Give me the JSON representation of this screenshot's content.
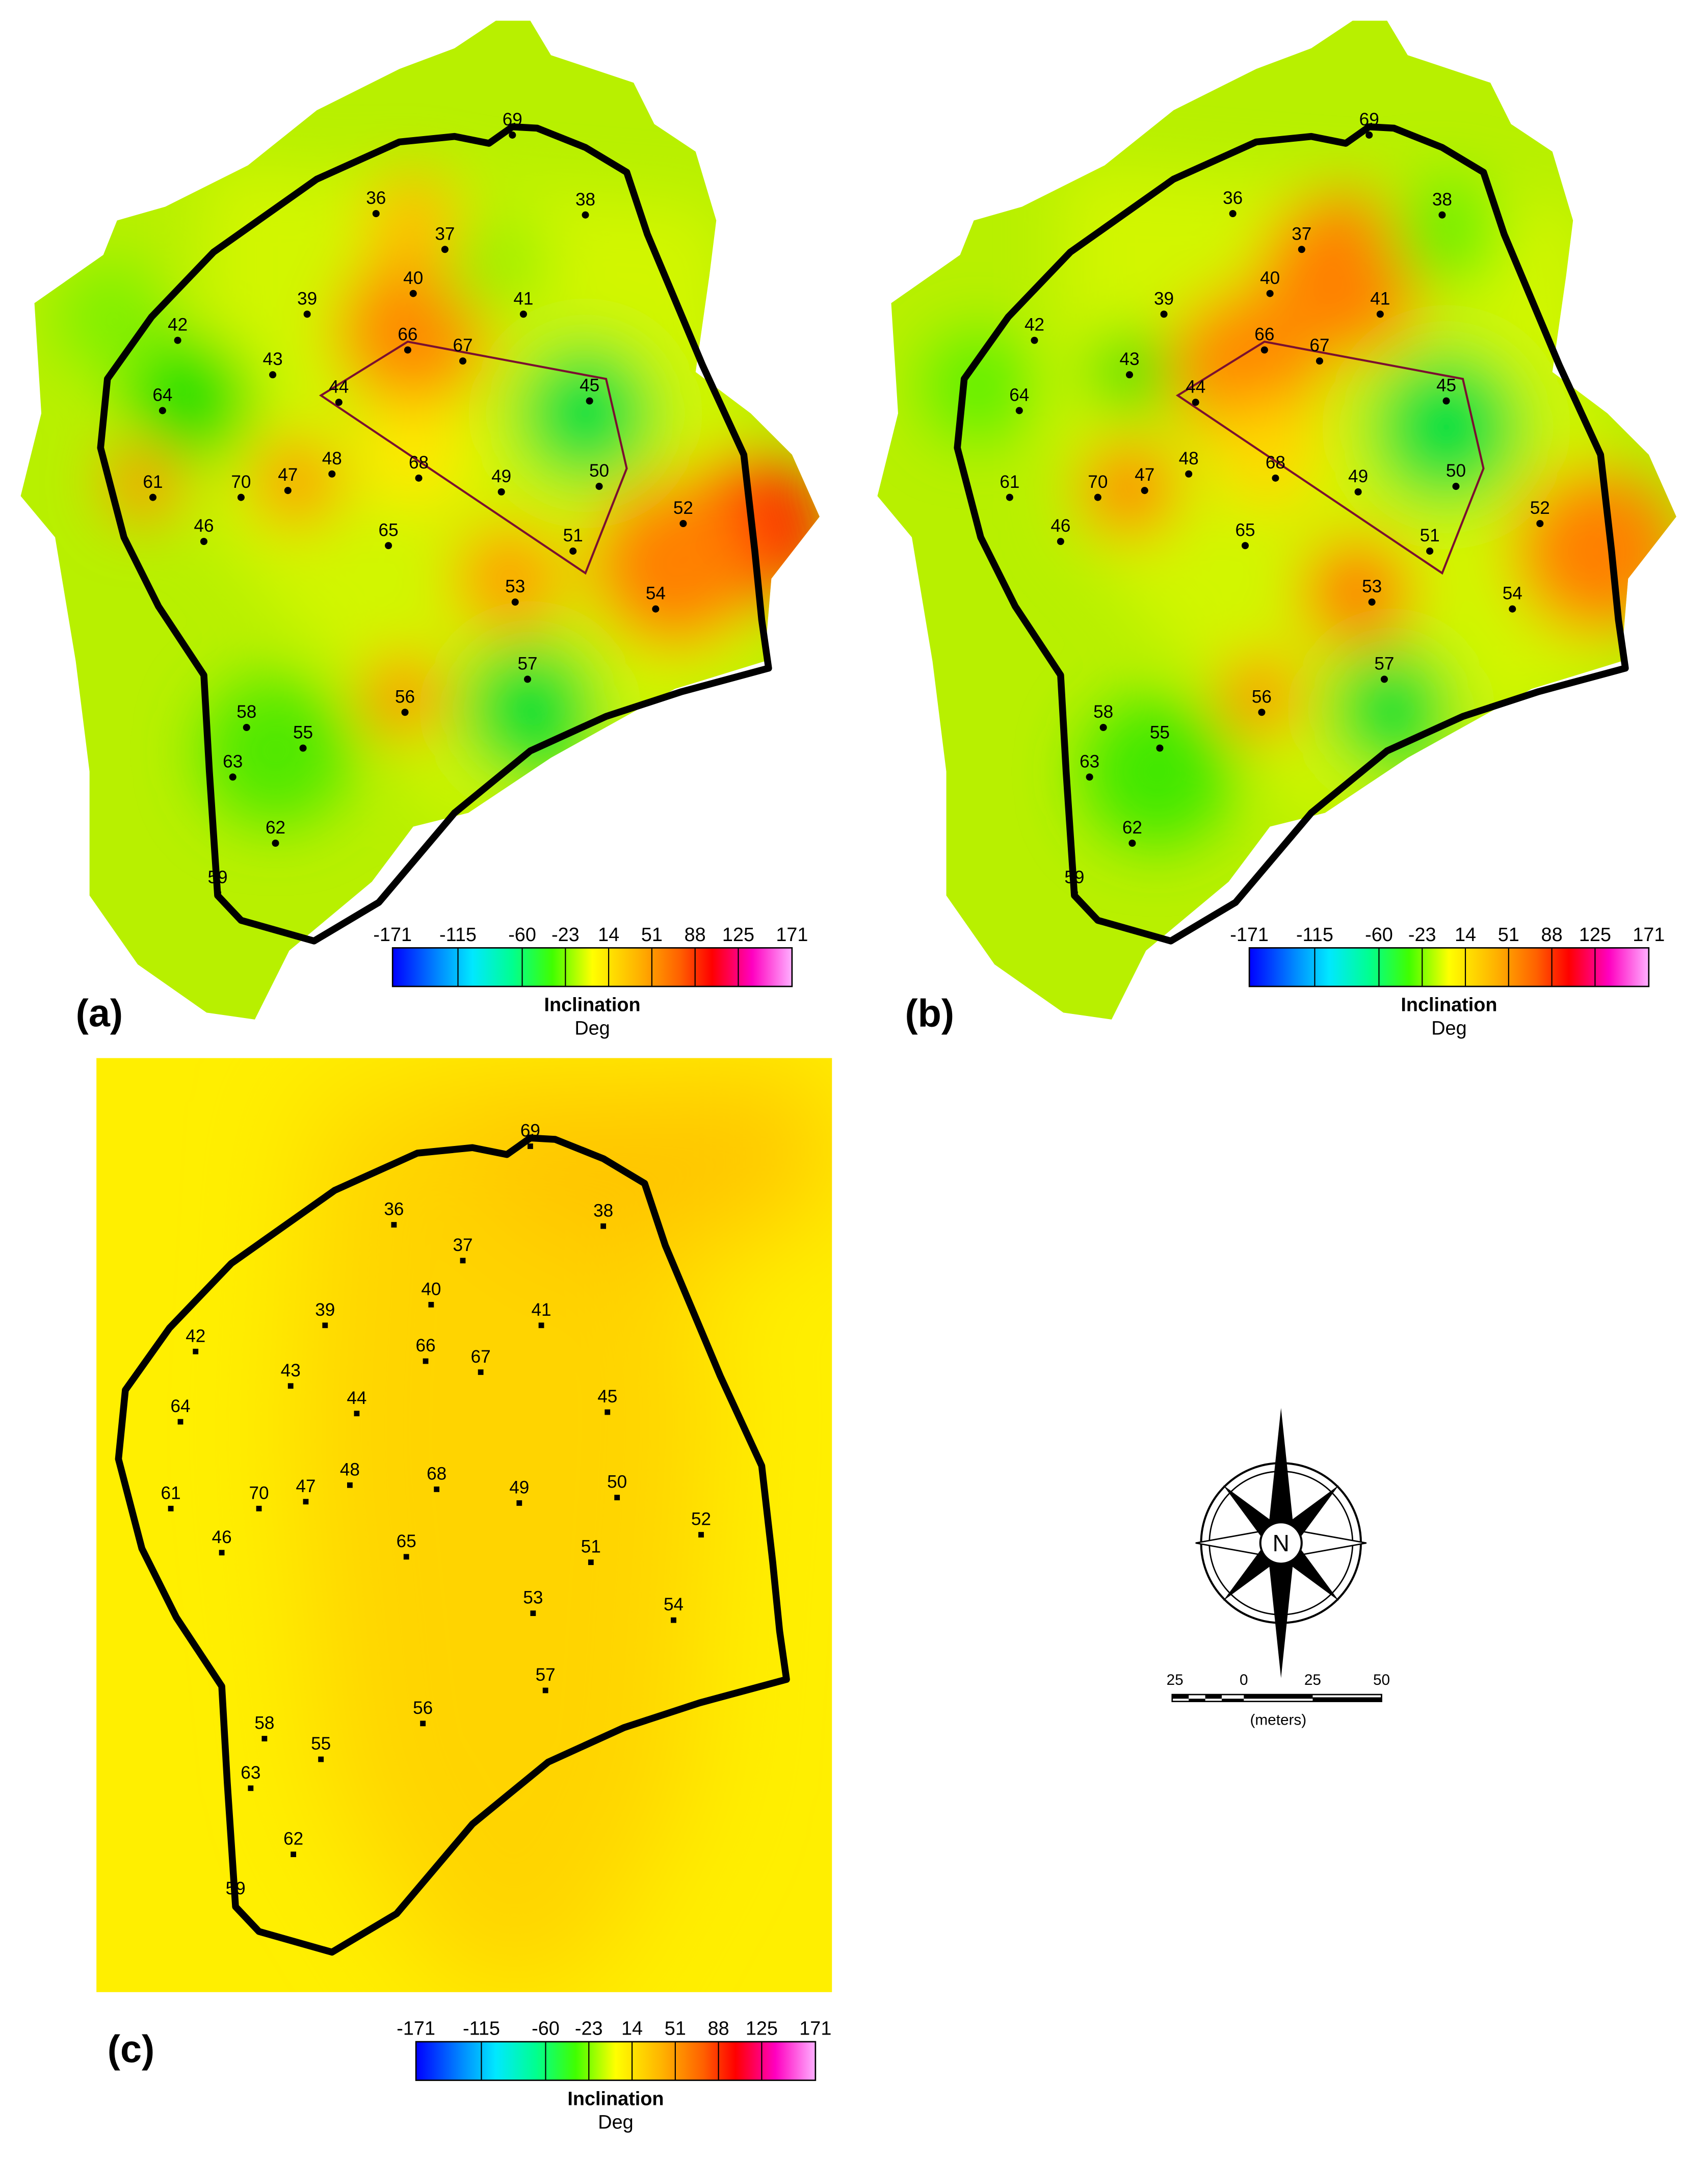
{
  "panels": [
    {
      "label": "(a)",
      "wells": [
        "36",
        "37",
        "38",
        "39",
        "40",
        "41",
        "42",
        "43",
        "44",
        "45",
        "46",
        "47",
        "48",
        "49",
        "50",
        "51",
        "52",
        "53",
        "54",
        "55",
        "56",
        "57",
        "58",
        "59",
        "61",
        "62",
        "63",
        "64",
        "65",
        "66",
        "67",
        "68",
        "69",
        "70"
      ]
    },
    {
      "label": "(b)",
      "wells": [
        "36",
        "37",
        "38",
        "39",
        "40",
        "41",
        "42",
        "43",
        "44",
        "45",
        "46",
        "47",
        "48",
        "49",
        "50",
        "51",
        "52",
        "53",
        "54",
        "55",
        "56",
        "57",
        "58",
        "59",
        "61",
        "62",
        "63",
        "64",
        "65",
        "66",
        "67",
        "68",
        "69",
        "70"
      ]
    },
    {
      "label": "(c)",
      "wells": [
        "36",
        "37",
        "38",
        "39",
        "40",
        "41",
        "42",
        "43",
        "44",
        "45",
        "46",
        "47",
        "48",
        "49",
        "50",
        "51",
        "52",
        "53",
        "54",
        "55",
        "56",
        "57",
        "58",
        "59",
        "61",
        "62",
        "63",
        "64",
        "65",
        "66",
        "67",
        "68",
        "69",
        "70"
      ]
    }
  ],
  "colorbar": {
    "ticks": [
      -171,
      -115,
      -60,
      -23,
      14,
      51,
      88,
      125,
      171
    ],
    "title": "Inclination",
    "unit": "Deg"
  },
  "scale_bar": {
    "ticks": [
      "25",
      "0",
      "25",
      "50"
    ],
    "unit": "(meters)"
  },
  "compass": "N"
}
